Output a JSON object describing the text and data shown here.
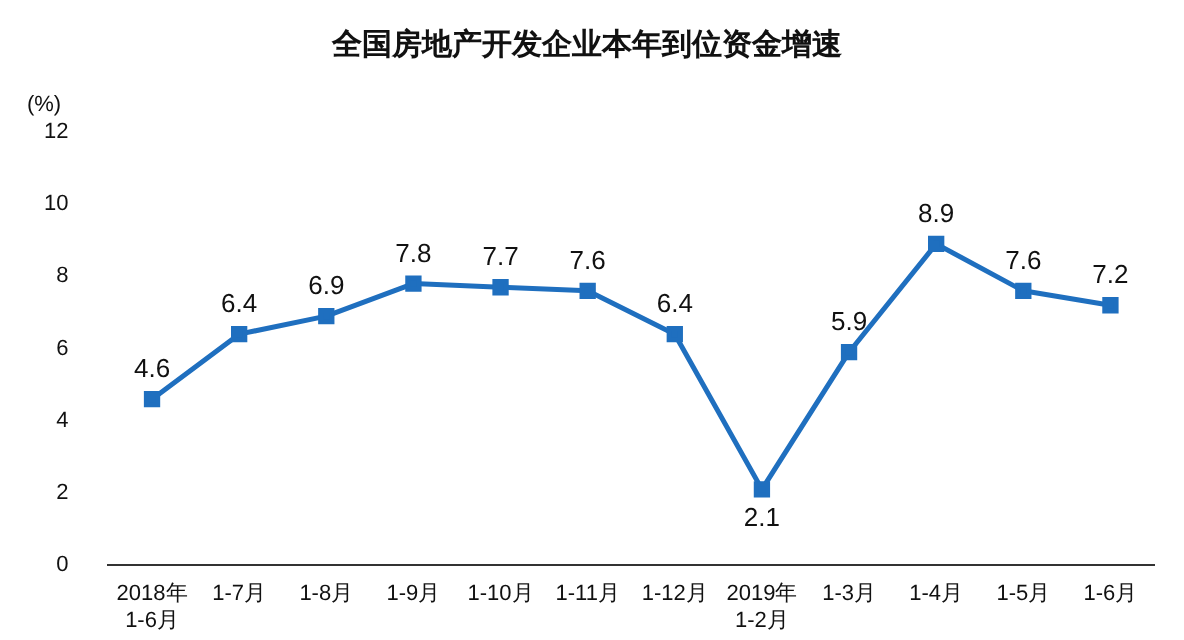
{
  "chart_data": {
    "type": "line",
    "title": "全国房地产开发企业本年到位资金增速",
    "ylabel": "(%)",
    "categories": [
      "2018年\n1-6月",
      "1-7月",
      "1-8月",
      "1-9月",
      "1-10月",
      "1-11月",
      "1-12月",
      "2019年\n1-2月",
      "1-3月",
      "1-4月",
      "1-5月",
      "1-6月"
    ],
    "series": [
      {
        "color": "#1f6fbf",
        "values": [
          4.6,
          6.4,
          6.9,
          7.8,
          7.7,
          7.6,
          6.4,
          2.1,
          5.9,
          8.9,
          7.6,
          7.2
        ]
      }
    ],
    "ylim": [
      0,
      12
    ],
    "yticks": [
      0,
      2,
      4,
      6,
      8,
      10,
      12
    ],
    "grid": false,
    "legend": false,
    "marker": "square",
    "line_style": "solid",
    "data_labels": true
  }
}
